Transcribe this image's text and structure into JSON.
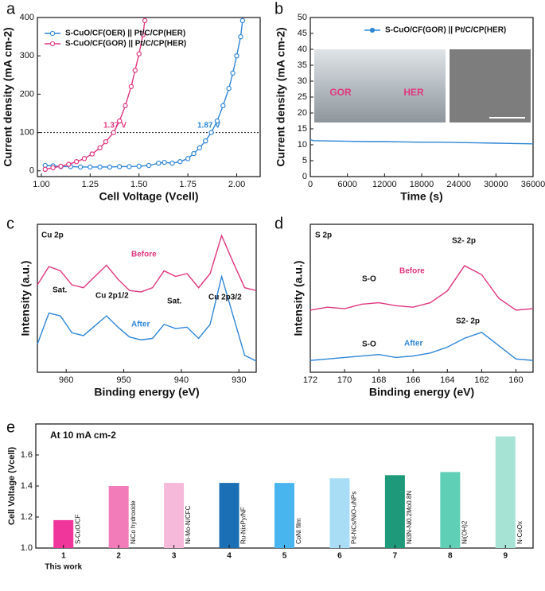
{
  "chart_data": [
    {
      "type": "line",
      "panel": "a",
      "xlabel": "Cell Voltage (Vcell)",
      "ylabel": "Current density (mA cm-2)",
      "xlim": [
        0.98,
        2.12
      ],
      "xticks": [
        {
          "value": 1,
          "label": "1.00"
        },
        {
          "value": 1.25,
          "label": "1.25"
        },
        {
          "value": 1.5,
          "label": "1.50"
        },
        {
          "value": 1.75,
          "label": "1.75"
        },
        {
          "value": 2,
          "label": "2.00"
        }
      ],
      "ylim": [
        -15,
        400
      ],
      "yticks": [
        0,
        100,
        200,
        300,
        400
      ],
      "hline": 100,
      "annotations": [
        "1.37 V",
        "1.87 V"
      ],
      "series": [
        {
          "name": "S-CuO/CF(OER) || Pt/C/CP(HER)",
          "color": "#2e86d6",
          "marker": true,
          "x": [
            1.02,
            1.06,
            1.1,
            1.15,
            1.2,
            1.25,
            1.3,
            1.35,
            1.4,
            1.45,
            1.5,
            1.55,
            1.6,
            1.63,
            1.67,
            1.71,
            1.75,
            1.78,
            1.81,
            1.84,
            1.87,
            1.9,
            1.93,
            1.96,
            1.98,
            2.0,
            2.02,
            2.03
          ],
          "values": [
            14,
            13,
            11,
            11,
            10,
            10,
            10,
            10,
            11,
            11,
            12,
            14,
            20,
            22,
            20,
            24,
            32,
            45,
            60,
            78,
            100,
            130,
            170,
            215,
            255,
            300,
            350,
            392
          ]
        },
        {
          "name": "S-CuO/CF(GOR) || Pt/C/CP(HER)",
          "color": "#e0367f",
          "marker": true,
          "x": [
            1.02,
            1.06,
            1.1,
            1.14,
            1.18,
            1.22,
            1.26,
            1.3,
            1.33,
            1.37,
            1.4,
            1.43,
            1.46,
            1.48,
            1.5,
            1.52,
            1.53
          ],
          "values": [
            4,
            8,
            12,
            17,
            24,
            32,
            44,
            60,
            76,
            100,
            130,
            170,
            220,
            262,
            305,
            355,
            392
          ]
        }
      ]
    },
    {
      "type": "line",
      "panel": "b",
      "xlabel": "Time (s)",
      "ylabel": "Current density (mA cm-2)",
      "xlim": [
        0,
        36000
      ],
      "xticks": [
        0,
        6000,
        12000,
        18000,
        24000,
        30000,
        36000
      ],
      "ylim": [
        0,
        50
      ],
      "yticks": [
        0,
        5,
        10,
        15,
        20,
        25,
        30,
        35,
        40,
        45,
        50
      ],
      "inset_labels": [
        "GOR",
        "HER"
      ],
      "x": [
        0,
        500,
        3000,
        6000,
        9000,
        12000,
        15000,
        18000,
        21000,
        24000,
        27000,
        30000,
        33000,
        36000
      ],
      "series": [
        {
          "name": "S-CuO/CF(GOR) || Pt/C/CP(HER)",
          "color": "#2e86d6",
          "marker": false,
          "values": [
            11.6,
            11.3,
            11.2,
            11.1,
            11.0,
            11.0,
            10.9,
            10.8,
            10.8,
            10.7,
            10.6,
            10.5,
            10.4,
            10.3
          ]
        }
      ]
    },
    {
      "type": "line",
      "panel": "c",
      "xlabel": "Binding energy (eV)",
      "ylabel": "Intensity (a.u.)",
      "xlim": [
        965,
        927
      ],
      "xticks": [
        960,
        950,
        940,
        930
      ],
      "ylim": [
        0,
        105
      ],
      "annotations": [
        "Cu 2p",
        "Sat.",
        "Cu 2p1/2",
        "Sat.",
        "Cu 2p3/2",
        "Before",
        "After"
      ],
      "x": [
        965,
        963,
        961,
        959,
        957,
        955,
        953,
        951,
        949,
        947,
        945,
        943,
        941,
        939,
        937,
        935,
        933,
        931,
        929,
        927
      ],
      "series": [
        {
          "name": "Before",
          "color": "#e0367f",
          "marker": false,
          "values": [
            62,
            75,
            72,
            62,
            60,
            68,
            76,
            66,
            58,
            57,
            60,
            72,
            68,
            70,
            60,
            70,
            97,
            78,
            60,
            58
          ]
        },
        {
          "name": "After",
          "color": "#2e86d6",
          "marker": false,
          "values": [
            20,
            42,
            40,
            28,
            26,
            33,
            40,
            32,
            25,
            23,
            24,
            34,
            31,
            32,
            24,
            34,
            68,
            40,
            12,
            8
          ]
        }
      ]
    },
    {
      "type": "line",
      "panel": "d",
      "xlabel": "Binding energy (eV)",
      "ylabel": "Intensity (a.u.)",
      "xlim": [
        172,
        159
      ],
      "xticks": [
        172,
        170,
        168,
        166,
        164,
        162,
        160
      ],
      "ylim": [
        0,
        100
      ],
      "annotations": [
        "S 2p",
        "S-O",
        "Before",
        "S2- 2p",
        "S-O",
        "After",
        "S2- 2p"
      ],
      "x": [
        172,
        171,
        170,
        169,
        168,
        167,
        166,
        165,
        164,
        163,
        162,
        161,
        160,
        159
      ],
      "series": [
        {
          "name": "Before",
          "color": "#e0367f",
          "marker": false,
          "values": [
            42,
            44,
            43,
            46,
            47,
            45,
            44,
            47,
            55,
            72,
            66,
            50,
            42,
            43
          ]
        },
        {
          "name": "After",
          "color": "#2e86d6",
          "marker": false,
          "values": [
            8,
            9,
            10,
            11,
            12,
            10,
            11,
            13,
            17,
            23,
            27,
            18,
            9,
            8
          ]
        }
      ]
    },
    {
      "type": "bar",
      "panel": "e",
      "title": "At 10 mA cm-2",
      "ylabel": "Cell Voltage (Vcell)",
      "categories": [
        "1",
        "2",
        "3",
        "4",
        "5",
        "6",
        "7",
        "8",
        "9"
      ],
      "first_note": "This work",
      "bar_labels": [
        "S-CuO/CF",
        "NiCo hydroxide",
        "Ni-Mo-N/CFC",
        "Ru-NixPy/NF",
        "CoNi film",
        "Pd-NCs/NiO-uNPs",
        "Ni3N-Ni0.2Mo0.8N",
        "Ni(OH)2",
        "N-CoOx"
      ],
      "values": [
        1.18,
        1.4,
        1.42,
        1.42,
        1.42,
        1.45,
        1.47,
        1.49,
        1.72
      ],
      "colors": [
        "#f0359b",
        "#f27bb9",
        "#f6b9da",
        "#1b6fb5",
        "#49b5ef",
        "#a9ddf5",
        "#1e9a7a",
        "#5fcfb5",
        "#a7e3d5"
      ],
      "ylim": [
        1.0,
        1.8
      ],
      "yticks": [
        {
          "value": 1,
          "label": "1.0"
        },
        {
          "value": 1.2,
          "label": "1.2"
        },
        {
          "value": 1.4,
          "label": "1.4"
        },
        {
          "value": 1.6,
          "label": "1.6"
        }
      ]
    }
  ]
}
